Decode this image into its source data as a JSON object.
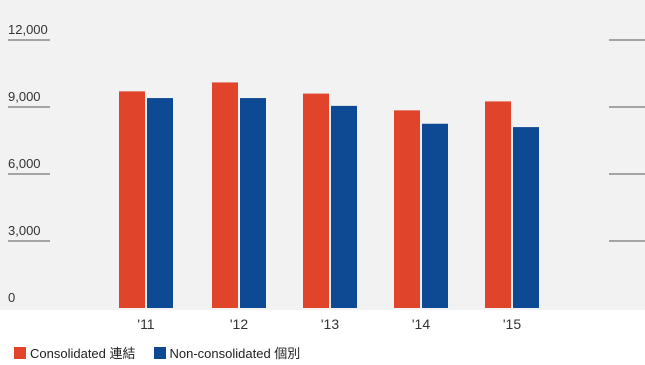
{
  "chart_data": {
    "type": "bar",
    "categories": [
      "'11",
      "'12",
      "'13",
      "'14",
      "'15"
    ],
    "series": [
      {
        "name": "Consolidated 連結",
        "color": "#e0452b",
        "values": [
          9700,
          10100,
          9600,
          8850,
          9250
        ]
      },
      {
        "name": "Non-consolidated 個別",
        "color": "#0e4a93",
        "values": [
          9400,
          9400,
          9050,
          8250,
          8100
        ]
      }
    ],
    "y_ticks": [
      {
        "value": 0,
        "label": "0"
      },
      {
        "value": 3000,
        "label": "3,000"
      },
      {
        "value": 6000,
        "label": "6,000"
      },
      {
        "value": 9000,
        "label": "9,000"
      },
      {
        "value": 12000,
        "label": "12,000"
      }
    ],
    "ylim": [
      0,
      12000
    ],
    "grid": false,
    "legend_position": "bottom-left"
  }
}
